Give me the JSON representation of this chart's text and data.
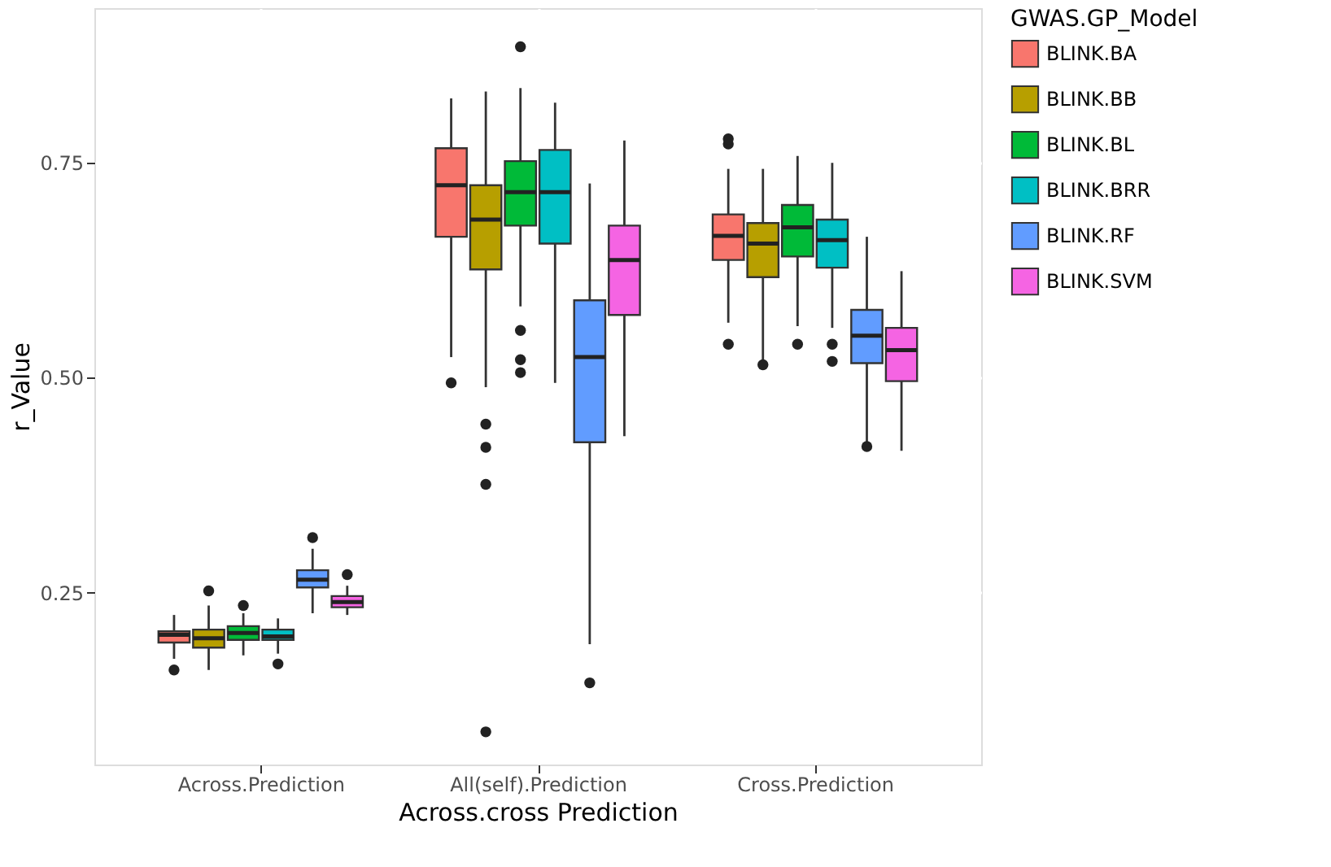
{
  "chart_data": {
    "type": "box",
    "xlabel": "Across.cross  Prediction",
    "ylabel": "r_Value",
    "legend_title": "GWAS.GP_Model",
    "legend": "right",
    "grid": true,
    "categories": [
      "Across.Prediction",
      "All(self).Prediction",
      "Cross.Prediction"
    ],
    "ylim": [
      0.05,
      0.93
    ],
    "yticks": [
      0.25,
      {
        "value": 0.5,
        "label": "0.50"
      },
      0.75
    ],
    "series": [
      {
        "name": "BLINK.BA",
        "color": "#f8766d",
        "boxes": [
          {
            "low": 0.173,
            "q1": 0.192,
            "median": 0.201,
            "q3": 0.205,
            "high": 0.224,
            "outliers": [
              0.16
            ]
          },
          {
            "low": 0.524,
            "q1": 0.664,
            "median": 0.724,
            "q3": 0.767,
            "high": 0.825,
            "outliers": [
              0.494
            ]
          },
          {
            "low": 0.564,
            "q1": 0.637,
            "median": 0.665,
            "q3": 0.69,
            "high": 0.743,
            "outliers": [
              0.539,
              0.772,
              0.778
            ]
          }
        ]
      },
      {
        "name": "BLINK.BB",
        "color": "#b79f00",
        "boxes": [
          {
            "low": 0.16,
            "q1": 0.186,
            "median": 0.197,
            "q3": 0.207,
            "high": 0.235,
            "outliers": [
              0.252
            ]
          },
          {
            "low": 0.489,
            "q1": 0.626,
            "median": 0.684,
            "q3": 0.724,
            "high": 0.833,
            "outliers": [
              0.446,
              0.419,
              0.376,
              0.088
            ]
          },
          {
            "low": 0.517,
            "q1": 0.617,
            "median": 0.656,
            "q3": 0.68,
            "high": 0.743,
            "outliers": [
              0.515
            ]
          }
        ]
      },
      {
        "name": "BLINK.BL",
        "color": "#00ba38",
        "boxes": [
          {
            "low": 0.177,
            "q1": 0.195,
            "median": 0.203,
            "q3": 0.211,
            "high": 0.226,
            "outliers": [
              0.235
            ]
          },
          {
            "low": 0.583,
            "q1": 0.677,
            "median": 0.716,
            "q3": 0.752,
            "high": 0.837,
            "outliers": [
              0.885,
              0.555,
              0.521,
              0.506
            ]
          },
          {
            "low": 0.56,
            "q1": 0.641,
            "median": 0.675,
            "q3": 0.701,
            "high": 0.758,
            "outliers": [
              0.539
            ]
          }
        ]
      },
      {
        "name": "BLINK.BRR",
        "color": "#00bfc4",
        "boxes": [
          {
            "low": 0.179,
            "q1": 0.195,
            "median": 0.199,
            "q3": 0.207,
            "high": 0.22,
            "outliers": [
              0.167
            ]
          },
          {
            "low": 0.494,
            "q1": 0.656,
            "median": 0.716,
            "q3": 0.765,
            "high": 0.82
          },
          {
            "low": 0.558,
            "q1": 0.628,
            "median": 0.66,
            "q3": 0.684,
            "high": 0.75,
            "outliers": [
              0.539,
              0.519
            ]
          }
        ]
      },
      {
        "name": "BLINK.RF",
        "color": "#619cff",
        "boxes": [
          {
            "low": 0.226,
            "q1": 0.256,
            "median": 0.265,
            "q3": 0.276,
            "high": 0.301,
            "outliers": [
              0.314
            ]
          },
          {
            "low": 0.19,
            "q1": 0.425,
            "median": 0.524,
            "q3": 0.59,
            "high": 0.726,
            "outliers": [
              0.145
            ]
          },
          {
            "low": 0.421,
            "q1": 0.517,
            "median": 0.549,
            "q3": 0.579,
            "high": 0.664,
            "outliers": [
              0.42
            ]
          }
        ]
      },
      {
        "name": "BLINK.SVM",
        "color": "#f564e3",
        "boxes": [
          {
            "low": 0.224,
            "q1": 0.233,
            "median": 0.239,
            "q3": 0.246,
            "high": 0.258,
            "outliers": [
              0.271
            ]
          },
          {
            "low": 0.432,
            "q1": 0.573,
            "median": 0.637,
            "q3": 0.677,
            "high": 0.776
          },
          {
            "low": 0.415,
            "q1": 0.496,
            "median": 0.532,
            "q3": 0.558,
            "high": 0.624
          }
        ]
      }
    ]
  }
}
